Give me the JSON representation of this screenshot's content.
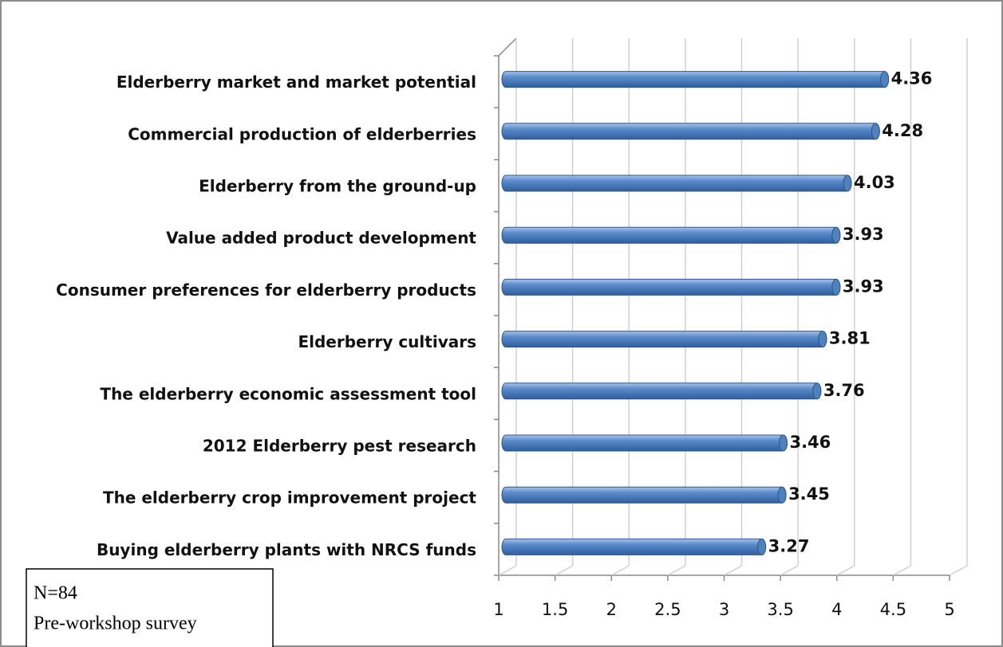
{
  "chart_data": {
    "type": "bar",
    "orientation": "horizontal",
    "categories": [
      "Elderberry market and market potential",
      "Commercial production of elderberries",
      "Elderberry from the ground-up",
      "Value added product development",
      "Consumer preferences for elderberry products",
      "Elderberry cultivars",
      "The elderberry economic assessment tool",
      "2012 Elderberry pest research",
      "The elderberry crop improvement project",
      "Buying elderberry plants with NRCS funds"
    ],
    "values": [
      4.36,
      4.28,
      4.03,
      3.93,
      3.93,
      3.81,
      3.76,
      3.46,
      3.45,
      3.27
    ],
    "color": "#4f81bd",
    "xlim": [
      1,
      5
    ],
    "xticks": [
      1,
      1.5,
      2,
      2.5,
      3,
      3.5,
      4,
      4.5,
      5
    ],
    "grid": true,
    "annotations": [
      "N=84",
      "Pre-workshop survey"
    ]
  }
}
